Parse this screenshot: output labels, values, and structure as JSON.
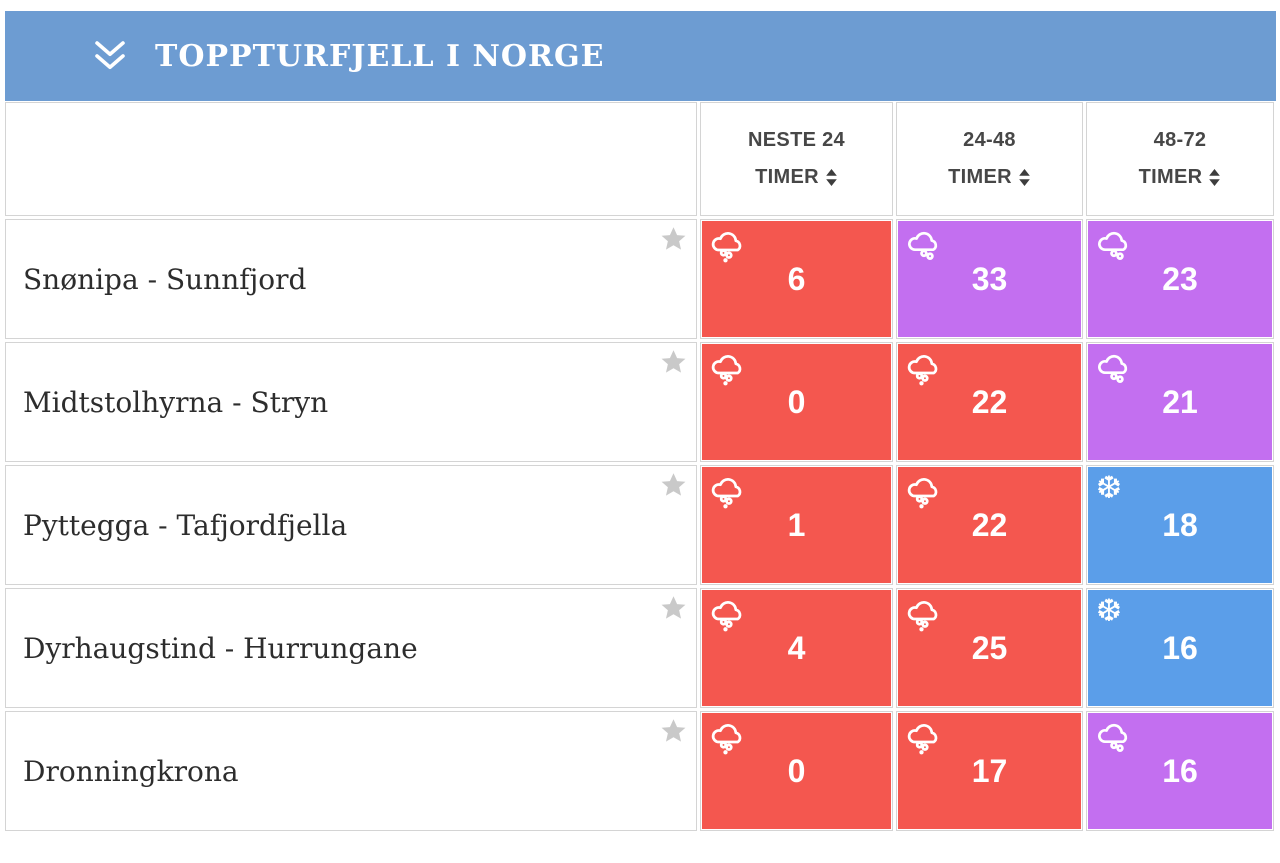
{
  "panel": {
    "title": "TOPPTURFJELL I NORGE"
  },
  "table": {
    "columns": [
      {
        "range": "NESTE 24",
        "unit": "TIMER"
      },
      {
        "range": "24-48",
        "unit": "TIMER"
      },
      {
        "range": "48-72",
        "unit": "TIMER"
      }
    ],
    "rows": [
      {
        "name": "Snønipa - Sunnfjord",
        "cells": [
          {
            "value": "6",
            "variant": "rain"
          },
          {
            "value": "33",
            "variant": "sleet"
          },
          {
            "value": "23",
            "variant": "sleet"
          }
        ]
      },
      {
        "name": "Midtstolhyrna - Stryn",
        "cells": [
          {
            "value": "0",
            "variant": "rain"
          },
          {
            "value": "22",
            "variant": "rain"
          },
          {
            "value": "21",
            "variant": "sleet"
          }
        ]
      },
      {
        "name": "Pyttegga - Tafjordfjella",
        "cells": [
          {
            "value": "1",
            "variant": "rain"
          },
          {
            "value": "22",
            "variant": "rain"
          },
          {
            "value": "18",
            "variant": "snow"
          }
        ]
      },
      {
        "name": "Dyrhaugstind - Hurrungane",
        "cells": [
          {
            "value": "4",
            "variant": "rain"
          },
          {
            "value": "25",
            "variant": "rain"
          },
          {
            "value": "16",
            "variant": "snow"
          }
        ]
      },
      {
        "name": "Dronningkrona",
        "cells": [
          {
            "value": "0",
            "variant": "rain"
          },
          {
            "value": "17",
            "variant": "rain"
          },
          {
            "value": "16",
            "variant": "sleet"
          }
        ]
      }
    ]
  },
  "icons": {
    "collapse": "double-chevron-down",
    "sort": "sort-arrows",
    "favorite": "star",
    "rain": "rain-cloud",
    "sleet": "sleet-cloud",
    "snow": "snowflake",
    "snow_glyph": "❆"
  },
  "colors": {
    "header_blue": "#6D9CD2",
    "rain": "#F4574F",
    "sleet": "#C36FF0",
    "snow": "#5B9EE9",
    "star_gray": "#C9C9C9",
    "border_gray": "#D4D4D4",
    "header_text": "#474747"
  }
}
